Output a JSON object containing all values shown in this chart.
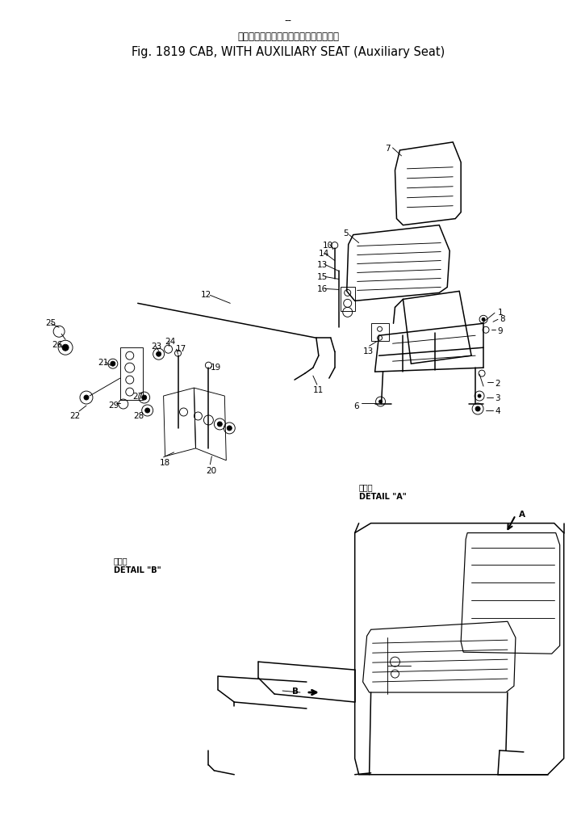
{
  "bg_color": "#ffffff",
  "line_color": "#000000",
  "title_line1_jp": "キャブ、補　助　席　付（補　助　席）",
  "title_line2_en": "Fig. 1819 CAB, WITH AUXILIARY SEAT (Auxiliary Seat)",
  "dash": "--",
  "detail_a_jp": "詳　細",
  "detail_a_en": "DETAIL \"A\"",
  "detail_b_jp": "詳　細",
  "detail_b_en": "DETAIL \"B\"",
  "fs_title": 10.5,
  "fs_jp": 8.5,
  "fs_label": 7.5,
  "fs_detail": 7.0,
  "lw_main": 1.1,
  "lw_thin": 0.65,
  "lw_med": 0.85
}
